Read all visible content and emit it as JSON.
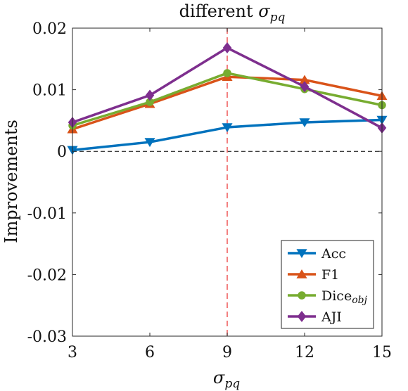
{
  "chart_data": {
    "type": "line",
    "title_prefix": "different ",
    "title_symbol": "σ",
    "title_subscript": "pq",
    "xlabel_symbol": "σ",
    "xlabel_subscript": "pq",
    "ylabel": "Improvements",
    "x": [
      3,
      6,
      9,
      12,
      15
    ],
    "xlim": [
      3,
      15
    ],
    "ylim": [
      -0.03,
      0.02
    ],
    "xticks": [
      "3",
      "6",
      "9",
      "12",
      "15"
    ],
    "yticks": [
      {
        "value": 0.02,
        "label": "0.02"
      },
      {
        "value": 0.01,
        "label": "0.01"
      },
      {
        "value": 0,
        "label": "0"
      },
      {
        "value": -0.01,
        "label": "-0.01"
      },
      {
        "value": -0.02,
        "label": "-0.02"
      },
      {
        "value": -0.03,
        "label": "-0.03"
      }
    ],
    "reference_lines": {
      "horizontal_y": 0,
      "vertical_x": 9
    },
    "grid": false,
    "legend_position": "bottom-right",
    "series": [
      {
        "name": "Acc",
        "name_subscript": "",
        "marker": "triangle-down",
        "color": "#0072BD",
        "values": [
          0.0002,
          0.0015,
          0.0039,
          0.0047,
          0.0051
        ]
      },
      {
        "name": "F1",
        "name_subscript": "",
        "marker": "triangle-up",
        "color": "#D95319",
        "values": [
          0.0036,
          0.0077,
          0.0121,
          0.0116,
          0.009
        ]
      },
      {
        "name": "Dice",
        "name_subscript": "obj",
        "marker": "circle",
        "color": "#77AC30",
        "values": [
          0.0042,
          0.008,
          0.0127,
          0.0101,
          0.0075
        ]
      },
      {
        "name": "AJI",
        "name_subscript": "",
        "marker": "diamond",
        "color": "#7E2F8E",
        "values": [
          0.0047,
          0.0091,
          0.0168,
          0.0105,
          0.0038
        ]
      }
    ],
    "colors": {
      "vertical_line": "#F06060",
      "zero_line": "#000000",
      "axes": "#262626"
    }
  }
}
